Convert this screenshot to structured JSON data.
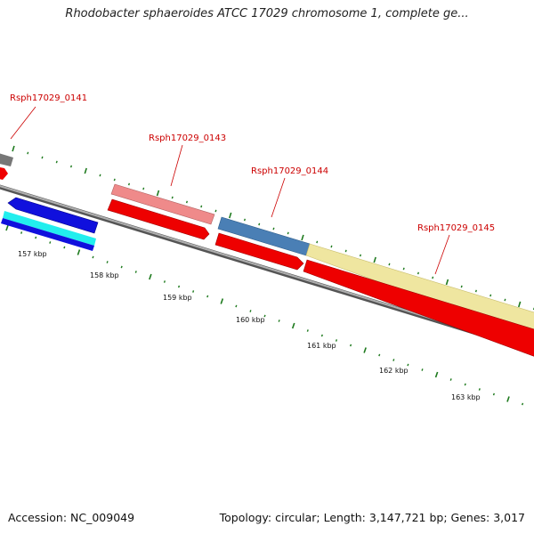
{
  "title": "Rhodobacter sphaeroides ATCC 17029 chromosome 1, complete ge...",
  "footer": {
    "accession": "Accession: NC_009049",
    "summary": "Topology: circular; Length: 3,147,721 bp; Genes: 3,017"
  },
  "colors": {
    "gene_label": "#cc0000",
    "tick": "#1e7a1e",
    "backbone": "#8a8a8a",
    "cds_red": "#ee0000",
    "gene_pink": "#ef8a8a",
    "gene_steelblue": "#4a7fb5",
    "gene_khaki": "#efe6a0",
    "gene_blue": "#1010dd",
    "gene_cyan": "#22eeee",
    "gene_grey": "#777777"
  },
  "gene_labels": [
    "Rsph17029_0141",
    "Rsph17029_0143",
    "Rsph17029_0144",
    "Rsph17029_0145"
  ],
  "kbp_labels": [
    "157 kbp",
    "158 kbp",
    "159 kbp",
    "160 kbp",
    "161 kbp",
    "162 kbp",
    "163 kbp"
  ]
}
